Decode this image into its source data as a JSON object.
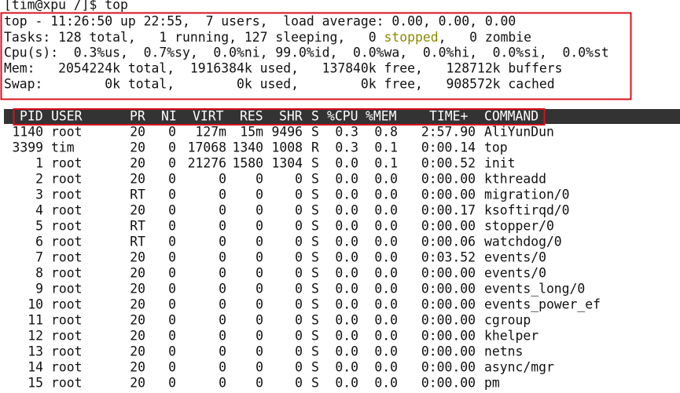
{
  "prompt": "[tim@xpu /]$ top",
  "summary": {
    "uptime": "top - 11:26:50 up 22:55,  7 users,  load average: 0.00, 0.00, 0.00",
    "tasks": [
      "Tasks: 128 total,   1 running, 127 sleeping,   0 ",
      "stopped",
      ",   0 zombie"
    ],
    "cpu": "Cpu(s):  0.3%us,  0.7%sy,  0.0%ni, 99.0%id,  0.0%wa,  0.0%hi,  0.0%si,  0.0%st",
    "mem": "Mem:   2054224k total,  1916384k used,   137840k free,   128712k buffers",
    "swap": "Swap:        0k total,        0k used,        0k free,   908572k cached"
  },
  "table": {
    "header": [
      "PID",
      "USER",
      "PR",
      "NI",
      "VIRT",
      "RES",
      "SHR",
      "S",
      "%CPU",
      "%MEM",
      "TIME+",
      "COMMAND"
    ],
    "rows": [
      [
        "1140",
        "root",
        "20",
        "0",
        "127m",
        "15m",
        "9496",
        "S",
        "0.3",
        "0.8",
        "2:57.90",
        "AliYunDun"
      ],
      [
        "3399",
        "tim",
        "20",
        "0",
        "17068",
        "1340",
        "1008",
        "R",
        "0.3",
        "0.1",
        "0:00.14",
        "top"
      ],
      [
        "1",
        "root",
        "20",
        "0",
        "21276",
        "1580",
        "1304",
        "S",
        "0.0",
        "0.1",
        "0:00.52",
        "init"
      ],
      [
        "2",
        "root",
        "20",
        "0",
        "0",
        "0",
        "0",
        "S",
        "0.0",
        "0.0",
        "0:00.00",
        "kthreadd"
      ],
      [
        "3",
        "root",
        "RT",
        "0",
        "0",
        "0",
        "0",
        "S",
        "0.0",
        "0.0",
        "0:00.00",
        "migration/0"
      ],
      [
        "4",
        "root",
        "20",
        "0",
        "0",
        "0",
        "0",
        "S",
        "0.0",
        "0.0",
        "0:00.17",
        "ksoftirqd/0"
      ],
      [
        "5",
        "root",
        "RT",
        "0",
        "0",
        "0",
        "0",
        "S",
        "0.0",
        "0.0",
        "0:00.00",
        "stopper/0"
      ],
      [
        "6",
        "root",
        "RT",
        "0",
        "0",
        "0",
        "0",
        "S",
        "0.0",
        "0.0",
        "0:00.06",
        "watchdog/0"
      ],
      [
        "7",
        "root",
        "20",
        "0",
        "0",
        "0",
        "0",
        "S",
        "0.0",
        "0.0",
        "0:03.52",
        "events/0"
      ],
      [
        "8",
        "root",
        "20",
        "0",
        "0",
        "0",
        "0",
        "S",
        "0.0",
        "0.0",
        "0:00.00",
        "events/0"
      ],
      [
        "9",
        "root",
        "20",
        "0",
        "0",
        "0",
        "0",
        "S",
        "0.0",
        "0.0",
        "0:00.00",
        "events_long/0"
      ],
      [
        "10",
        "root",
        "20",
        "0",
        "0",
        "0",
        "0",
        "S",
        "0.0",
        "0.0",
        "0:00.00",
        "events_power_ef"
      ],
      [
        "11",
        "root",
        "20",
        "0",
        "0",
        "0",
        "0",
        "S",
        "0.0",
        "0.0",
        "0:00.00",
        "cgroup"
      ],
      [
        "12",
        "root",
        "20",
        "0",
        "0",
        "0",
        "0",
        "S",
        "0.0",
        "0.0",
        "0:00.00",
        "khelper"
      ],
      [
        "13",
        "root",
        "20",
        "0",
        "0",
        "0",
        "0",
        "S",
        "0.0",
        "0.0",
        "0:00.00",
        "netns"
      ],
      [
        "14",
        "root",
        "20",
        "0",
        "0",
        "0",
        "0",
        "S",
        "0.0",
        "0.0",
        "0:00.00",
        "async/mgr"
      ],
      [
        "15",
        "root",
        "20",
        "0",
        "0",
        "0",
        "0",
        "S",
        "0.0",
        "0.0",
        "0:00.00",
        "pm"
      ]
    ]
  }
}
